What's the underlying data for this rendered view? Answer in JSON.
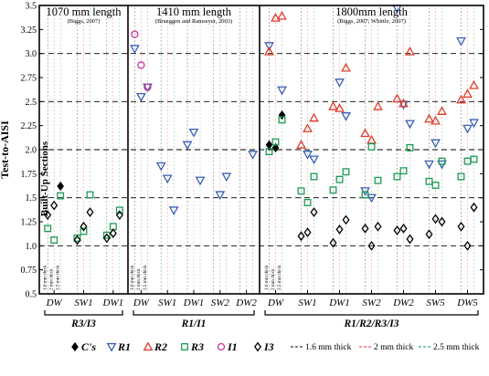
{
  "chart_data": {
    "type": "scatter",
    "ylabel": "Test-to-AISI",
    "ylabel2": "Built-Up Sections",
    "ylim": [
      0.5,
      3.5
    ],
    "yticks": [
      0.5,
      0.75,
      1.0,
      1.25,
      1.5,
      1.75,
      2.0,
      2.25,
      2.5,
      2.75,
      3.0,
      3.25,
      3.5
    ],
    "ytick_labels": [
      "0.5",
      "0.75",
      "1.0",
      "1.25",
      "1.5",
      "1.75",
      "2.0",
      "2.25",
      "2.5",
      "2.75",
      "3.0",
      "3.25",
      "3.5"
    ],
    "dashed_gridlines_y": [
      1.0,
      1.5,
      2.0,
      2.5,
      3.0
    ],
    "panels": [
      {
        "title": "1070 mm length",
        "subtitle": "(Biggs, 2007)",
        "categories": [
          "DW",
          "SW1",
          "DW1"
        ],
        "group_label": "R3/I3"
      },
      {
        "title": "1410 mm length",
        "subtitle": "(Brueggen and Ramseyer, 2003)",
        "categories": [
          "DW",
          "SW1",
          "DW1",
          "SW2",
          "DW2"
        ],
        "group_label": "R1/I1"
      },
      {
        "title": "1800mm length",
        "subtitle": "(Biggs, 2007; Whittle, 2007)",
        "categories": [
          "DW",
          "SW1",
          "DW1",
          "SW2",
          "DW2",
          "SW5",
          "DW5"
        ],
        "group_label": "R1/R2/R3/I3"
      }
    ],
    "thickness_labels": [
      "1.6 mm thick",
      "2 mm thick",
      "2.5 mm thick"
    ],
    "series": [
      {
        "name": "C's",
        "marker": "diamond-filled",
        "color": "#000000",
        "points": [
          {
            "panel": 0,
            "x": "DW",
            "t": 2,
            "y": 1.62
          },
          {
            "panel": 2,
            "x": "DW",
            "t": 0,
            "y": 2.05
          },
          {
            "panel": 2,
            "x": "DW",
            "t": 1,
            "y": 2.02
          },
          {
            "panel": 2,
            "x": "DW",
            "t": 2,
            "y": 2.36
          }
        ]
      },
      {
        "name": "R1",
        "marker": "triangle-down",
        "color": "#3b5fb5",
        "points": [
          {
            "panel": 1,
            "x": "DW",
            "t": 0,
            "y": 3.05
          },
          {
            "panel": 1,
            "x": "DW",
            "t": 1,
            "y": 2.55
          },
          {
            "panel": 1,
            "x": "DW",
            "t": 2,
            "y": 2.65
          },
          {
            "panel": 1,
            "x": "SW1",
            "t": 0,
            "y": 1.83
          },
          {
            "panel": 1,
            "x": "SW1",
            "t": 1,
            "y": 1.7
          },
          {
            "panel": 1,
            "x": "SW1",
            "t": 2,
            "y": 1.37
          },
          {
            "panel": 1,
            "x": "DW1",
            "t": 0,
            "y": 2.05
          },
          {
            "panel": 1,
            "x": "DW1",
            "t": 1,
            "y": 2.18
          },
          {
            "panel": 1,
            "x": "DW1",
            "t": 2,
            "y": 1.68
          },
          {
            "panel": 1,
            "x": "SW2",
            "t": 1,
            "y": 1.53
          },
          {
            "panel": 1,
            "x": "SW2",
            "t": 2,
            "y": 1.72
          },
          {
            "panel": 1,
            "x": "DW2",
            "t": 2,
            "y": 1.95
          },
          {
            "panel": 2,
            "x": "DW",
            "t": 0,
            "y": 3.08
          },
          {
            "panel": 2,
            "x": "DW",
            "t": 2,
            "y": 2.62
          },
          {
            "panel": 2,
            "x": "SW1",
            "t": 1,
            "y": 1.95
          },
          {
            "panel": 2,
            "x": "SW1",
            "t": 2,
            "y": 1.9
          },
          {
            "panel": 2,
            "x": "DW1",
            "t": 1,
            "y": 2.7
          },
          {
            "panel": 2,
            "x": "DW1",
            "t": 2,
            "y": 2.35
          },
          {
            "panel": 2,
            "x": "SW2",
            "t": 0,
            "y": 1.57
          },
          {
            "panel": 2,
            "x": "SW2",
            "t": 1,
            "y": 1.5
          },
          {
            "panel": 2,
            "x": "DW2",
            "t": 0,
            "y": 3.47
          },
          {
            "panel": 2,
            "x": "DW2",
            "t": 1,
            "y": 2.47
          },
          {
            "panel": 2,
            "x": "DW2",
            "t": 2,
            "y": 2.27
          },
          {
            "panel": 2,
            "x": "SW5",
            "t": 0,
            "y": 1.85
          },
          {
            "panel": 2,
            "x": "SW5",
            "t": 1,
            "y": 2.07
          },
          {
            "panel": 2,
            "x": "SW5",
            "t": 2,
            "y": 1.85
          },
          {
            "panel": 2,
            "x": "DW5",
            "t": 0,
            "y": 3.13
          },
          {
            "panel": 2,
            "x": "DW5",
            "t": 1,
            "y": 2.22
          },
          {
            "panel": 2,
            "x": "DW5",
            "t": 2,
            "y": 2.28
          }
        ]
      },
      {
        "name": "R2",
        "marker": "triangle-up",
        "color": "#e03c2a",
        "points": [
          {
            "panel": 2,
            "x": "DW",
            "t": 0,
            "y": 3.02
          },
          {
            "panel": 2,
            "x": "DW",
            "t": 1,
            "y": 3.37
          },
          {
            "panel": 2,
            "x": "DW",
            "t": 2,
            "y": 3.39
          },
          {
            "panel": 2,
            "x": "SW1",
            "t": 0,
            "y": 2.05
          },
          {
            "panel": 2,
            "x": "SW1",
            "t": 1,
            "y": 2.22
          },
          {
            "panel": 2,
            "x": "SW1",
            "t": 2,
            "y": 2.33
          },
          {
            "panel": 2,
            "x": "DW1",
            "t": 0,
            "y": 2.45
          },
          {
            "panel": 2,
            "x": "DW1",
            "t": 1,
            "y": 2.43
          },
          {
            "panel": 2,
            "x": "DW1",
            "t": 2,
            "y": 2.85
          },
          {
            "panel": 2,
            "x": "SW2",
            "t": 0,
            "y": 2.17
          },
          {
            "panel": 2,
            "x": "SW2",
            "t": 1,
            "y": 2.1
          },
          {
            "panel": 2,
            "x": "SW2",
            "t": 2,
            "y": 2.45
          },
          {
            "panel": 2,
            "x": "DW2",
            "t": 0,
            "y": 2.53
          },
          {
            "panel": 2,
            "x": "DW2",
            "t": 1,
            "y": 2.48
          },
          {
            "panel": 2,
            "x": "DW2",
            "t": 2,
            "y": 3.02
          },
          {
            "panel": 2,
            "x": "SW5",
            "t": 0,
            "y": 2.32
          },
          {
            "panel": 2,
            "x": "SW5",
            "t": 1,
            "y": 2.3
          },
          {
            "panel": 2,
            "x": "SW5",
            "t": 2,
            "y": 2.4
          },
          {
            "panel": 2,
            "x": "DW5",
            "t": 0,
            "y": 2.52
          },
          {
            "panel": 2,
            "x": "DW5",
            "t": 1,
            "y": 2.58
          },
          {
            "panel": 2,
            "x": "DW5",
            "t": 2,
            "y": 2.67
          }
        ]
      },
      {
        "name": "R3",
        "marker": "square",
        "color": "#1a9a55",
        "points": [
          {
            "panel": 0,
            "x": "DW",
            "t": 0,
            "y": 1.18
          },
          {
            "panel": 0,
            "x": "DW",
            "t": 1,
            "y": 1.06
          },
          {
            "panel": 0,
            "x": "DW",
            "t": 2,
            "y": 1.52
          },
          {
            "panel": 0,
            "x": "SW1",
            "t": 0,
            "y": 1.08
          },
          {
            "panel": 0,
            "x": "SW1",
            "t": 1,
            "y": 1.15
          },
          {
            "panel": 0,
            "x": "SW1",
            "t": 2,
            "y": 1.53
          },
          {
            "panel": 0,
            "x": "DW1",
            "t": 0,
            "y": 1.11
          },
          {
            "panel": 0,
            "x": "DW1",
            "t": 1,
            "y": 1.2
          },
          {
            "panel": 0,
            "x": "DW1",
            "t": 2,
            "y": 1.37
          },
          {
            "panel": 2,
            "x": "DW",
            "t": 0,
            "y": 1.98
          },
          {
            "panel": 2,
            "x": "DW",
            "t": 1,
            "y": 2.08
          },
          {
            "panel": 2,
            "x": "DW",
            "t": 2,
            "y": 2.31
          },
          {
            "panel": 2,
            "x": "SW1",
            "t": 0,
            "y": 1.57
          },
          {
            "panel": 2,
            "x": "SW1",
            "t": 1,
            "y": 1.45
          },
          {
            "panel": 2,
            "x": "SW1",
            "t": 2,
            "y": 1.72
          },
          {
            "panel": 2,
            "x": "DW1",
            "t": 0,
            "y": 1.58
          },
          {
            "panel": 2,
            "x": "DW1",
            "t": 1,
            "y": 1.69
          },
          {
            "panel": 2,
            "x": "DW1",
            "t": 2,
            "y": 1.77
          },
          {
            "panel": 2,
            "x": "SW2",
            "t": 0,
            "y": 1.53
          },
          {
            "panel": 2,
            "x": "SW2",
            "t": 1,
            "y": 2.03
          },
          {
            "panel": 2,
            "x": "SW2",
            "t": 2,
            "y": 1.68
          },
          {
            "panel": 2,
            "x": "DW2",
            "t": 0,
            "y": 1.72
          },
          {
            "panel": 2,
            "x": "DW2",
            "t": 1,
            "y": 1.78
          },
          {
            "panel": 2,
            "x": "DW2",
            "t": 2,
            "y": 2.02
          },
          {
            "panel": 2,
            "x": "SW5",
            "t": 0,
            "y": 1.67
          },
          {
            "panel": 2,
            "x": "SW5",
            "t": 1,
            "y": 1.63
          },
          {
            "panel": 2,
            "x": "SW5",
            "t": 2,
            "y": 1.88
          },
          {
            "panel": 2,
            "x": "DW5",
            "t": 0,
            "y": 1.72
          },
          {
            "panel": 2,
            "x": "DW5",
            "t": 1,
            "y": 1.88
          },
          {
            "panel": 2,
            "x": "DW5",
            "t": 2,
            "y": 1.9
          }
        ]
      },
      {
        "name": "I1",
        "marker": "circle",
        "color": "#d0309a",
        "points": [
          {
            "panel": 1,
            "x": "DW",
            "t": 0,
            "y": 3.2
          },
          {
            "panel": 1,
            "x": "DW",
            "t": 1,
            "y": 2.88
          },
          {
            "panel": 1,
            "x": "DW",
            "t": 2,
            "y": 2.65
          }
        ]
      },
      {
        "name": "I3",
        "marker": "diamond-open",
        "color": "#000000",
        "points": [
          {
            "panel": 0,
            "x": "DW",
            "t": 0,
            "y": 1.32
          },
          {
            "panel": 0,
            "x": "DW",
            "t": 1,
            "y": 1.42
          },
          {
            "panel": 0,
            "x": "SW1",
            "t": 0,
            "y": 1.06
          },
          {
            "panel": 0,
            "x": "SW1",
            "t": 1,
            "y": 1.2
          },
          {
            "panel": 0,
            "x": "SW1",
            "t": 2,
            "y": 1.35
          },
          {
            "panel": 0,
            "x": "DW1",
            "t": 0,
            "y": 1.08
          },
          {
            "panel": 0,
            "x": "DW1",
            "t": 1,
            "y": 1.13
          },
          {
            "panel": 0,
            "x": "DW1",
            "t": 2,
            "y": 1.32
          },
          {
            "panel": 2,
            "x": "SW1",
            "t": 0,
            "y": 1.1
          },
          {
            "panel": 2,
            "x": "SW1",
            "t": 1,
            "y": 1.14
          },
          {
            "panel": 2,
            "x": "SW1",
            "t": 2,
            "y": 1.35
          },
          {
            "panel": 2,
            "x": "DW1",
            "t": 0,
            "y": 1.03
          },
          {
            "panel": 2,
            "x": "DW1",
            "t": 1,
            "y": 1.17
          },
          {
            "panel": 2,
            "x": "DW1",
            "t": 2,
            "y": 1.27
          },
          {
            "panel": 2,
            "x": "SW2",
            "t": 0,
            "y": 1.18
          },
          {
            "panel": 2,
            "x": "SW2",
            "t": 1,
            "y": 1.0
          },
          {
            "panel": 2,
            "x": "SW2",
            "t": 2,
            "y": 1.2
          },
          {
            "panel": 2,
            "x": "DW2",
            "t": 0,
            "y": 1.16
          },
          {
            "panel": 2,
            "x": "DW2",
            "t": 1,
            "y": 1.18
          },
          {
            "panel": 2,
            "x": "DW2",
            "t": 2,
            "y": 1.07
          },
          {
            "panel": 2,
            "x": "SW5",
            "t": 0,
            "y": 1.12
          },
          {
            "panel": 2,
            "x": "SW5",
            "t": 1,
            "y": 1.28
          },
          {
            "panel": 2,
            "x": "SW5",
            "t": 2,
            "y": 1.25
          },
          {
            "panel": 2,
            "x": "DW5",
            "t": 0,
            "y": 1.2
          },
          {
            "panel": 2,
            "x": "DW5",
            "t": 1,
            "y": 1.0
          },
          {
            "panel": 2,
            "x": "DW5",
            "t": 2,
            "y": 1.4
          }
        ]
      }
    ],
    "legend": {
      "placement": "bottom",
      "markers": [
        "C's",
        "R1",
        "R2",
        "R3",
        "I1",
        "I3"
      ],
      "lines": [
        {
          "label": "1.6 mm thick",
          "color": "#000000"
        },
        {
          "label": "2 mm thick",
          "color": "#e03c2a"
        },
        {
          "label": "2.5 mm thick",
          "color": "#1a9a55"
        }
      ]
    }
  }
}
